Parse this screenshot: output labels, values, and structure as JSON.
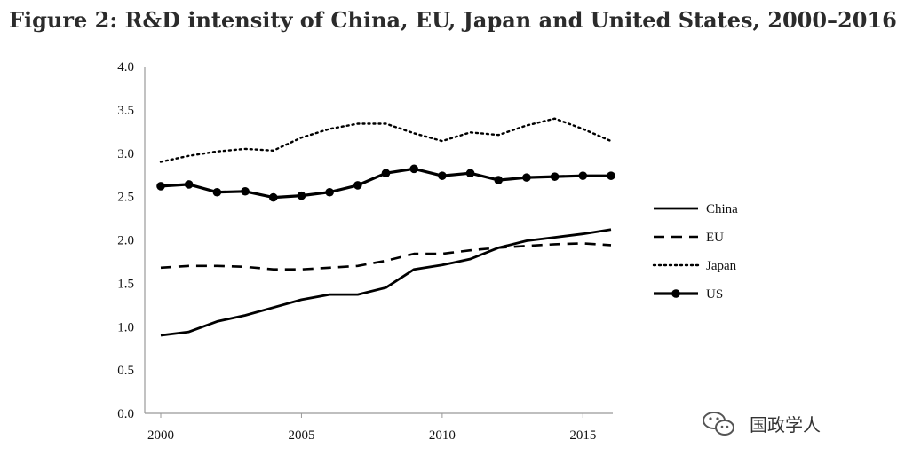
{
  "chart_data": {
    "type": "line",
    "title": "Figure 2: R&D intensity of China, EU, Japan and United States, 2000–2016",
    "xlabel": "",
    "ylabel": "",
    "x": [
      2000,
      2001,
      2002,
      2003,
      2004,
      2005,
      2006,
      2007,
      2008,
      2009,
      2010,
      2011,
      2012,
      2013,
      2014,
      2015,
      2016
    ],
    "x_ticks": [
      "2000",
      "2005",
      "2010",
      "2015"
    ],
    "xlim": [
      2000,
      2016
    ],
    "ylim": [
      0,
      4
    ],
    "y_ticks": [
      "0.0",
      "0.5",
      "1.0",
      "1.5",
      "2.0",
      "2.5",
      "3.0",
      "3.5",
      "4.0"
    ],
    "grid": false,
    "legend_position": "right",
    "series": [
      {
        "name": "China",
        "style": "solid",
        "markers": false,
        "values": [
          0.9,
          0.94,
          1.06,
          1.13,
          1.22,
          1.31,
          1.37,
          1.37,
          1.45,
          1.66,
          1.71,
          1.78,
          1.91,
          1.99,
          2.03,
          2.07,
          2.12
        ]
      },
      {
        "name": "EU",
        "style": "dashed",
        "markers": false,
        "values": [
          1.68,
          1.7,
          1.7,
          1.69,
          1.66,
          1.66,
          1.68,
          1.7,
          1.76,
          1.84,
          1.84,
          1.88,
          1.91,
          1.93,
          1.95,
          1.96,
          1.94
        ]
      },
      {
        "name": "Japan",
        "style": "dotted",
        "markers": false,
        "values": [
          2.9,
          2.97,
          3.02,
          3.05,
          3.03,
          3.18,
          3.28,
          3.34,
          3.34,
          3.23,
          3.14,
          3.24,
          3.21,
          3.32,
          3.4,
          3.28,
          3.14
        ]
      },
      {
        "name": "US",
        "style": "solid",
        "markers": true,
        "values": [
          2.62,
          2.64,
          2.55,
          2.56,
          2.49,
          2.51,
          2.55,
          2.63,
          2.77,
          2.82,
          2.74,
          2.77,
          2.69,
          2.72,
          2.73,
          2.74,
          2.74
        ]
      }
    ]
  },
  "watermark": {
    "text": "国政学人",
    "icon": "wechat-icon"
  }
}
